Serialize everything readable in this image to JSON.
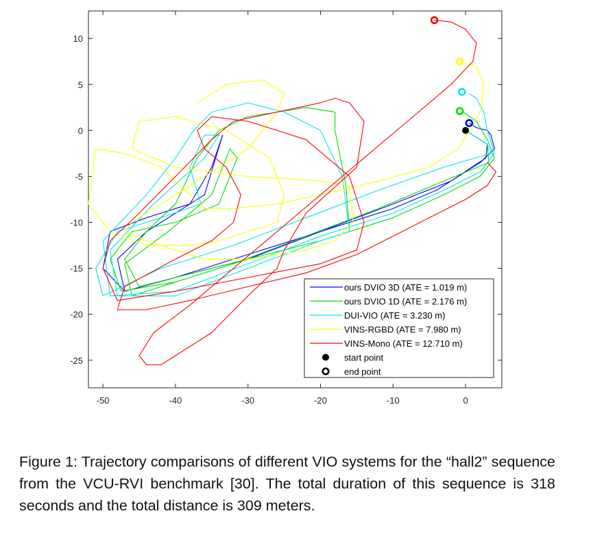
{
  "chart_data": {
    "type": "line",
    "title": "",
    "xlabel": "",
    "ylabel": "",
    "xlim": [
      -52,
      5
    ],
    "ylim": [
      -28,
      13
    ],
    "grid": false,
    "legend_position": "bottom-right",
    "x_ticks": [
      -50,
      -40,
      -30,
      -20,
      -10,
      0
    ],
    "y_ticks": [
      10,
      5,
      0,
      -5,
      -10,
      -15,
      -20,
      -25
    ],
    "x_tick_labels": [
      "-50",
      "-40",
      "-30",
      "-20",
      "-10",
      "0"
    ],
    "y_tick_labels": [
      "10",
      "5",
      "0",
      "-5",
      "-10",
      "-15",
      "-20",
      "-25"
    ],
    "series": [
      {
        "name": "ours DVIO 3D (ATE = 1.019 m)",
        "color": "#0000ff",
        "x": [
          0,
          3,
          2.8,
          -2,
          -10,
          -20,
          -30,
          -40,
          -47,
          -50,
          -49,
          -44,
          -38,
          -35,
          -33.5,
          -36,
          -44,
          -48,
          -47,
          -40,
          -30,
          -20,
          -10,
          -4,
          -1,
          2,
          4,
          3.5,
          3,
          1.5,
          0.5
        ],
        "y": [
          0,
          -1.5,
          -3,
          -5.5,
          -8,
          -11,
          -14,
          -16,
          -17.5,
          -15,
          -11,
          -9.5,
          -8,
          -4,
          -0.5,
          -7,
          -11,
          -14,
          -17.5,
          -16,
          -13.5,
          -11,
          -8.5,
          -6.5,
          -5,
          -3.5,
          -2,
          -0.5,
          0,
          0.3,
          0.8
        ]
      },
      {
        "name": "ours DVIO 1D (ATE = 2.176 m)",
        "color": "#00dd00",
        "x": [
          0,
          3,
          3.2,
          -3,
          -12,
          -22,
          -32,
          -40,
          -47.5,
          -49,
          -46,
          -40,
          -34,
          -31.5,
          -32.5,
          -35,
          -41,
          -47,
          -46,
          -40,
          -30,
          -20,
          -16,
          -16.5,
          -18,
          -18,
          -22,
          -30,
          -34,
          -37,
          -40,
          -44,
          -47,
          -45,
          -40,
          -30,
          -20,
          -10,
          -3,
          2,
          4,
          3,
          1.5,
          -0.3
        ],
        "y": [
          0,
          -1.5,
          -3.5,
          -5.5,
          -8.5,
          -11.5,
          -14.5,
          -16.5,
          -17.5,
          -14,
          -11,
          -10,
          -8,
          -3,
          -2,
          -7,
          -11,
          -14.5,
          -18,
          -16.5,
          -14,
          -12,
          -11,
          -6,
          0,
          2,
          2.5,
          1.5,
          0,
          -3,
          -8,
          -11,
          -14,
          -17,
          -16,
          -14,
          -12,
          -9.5,
          -7,
          -5,
          -3,
          -1,
          1,
          2
        ]
      },
      {
        "name": "DUI-VIO (ATE = 3.230 m)",
        "color": "#00e5ee",
        "x": [
          0,
          3,
          3.5,
          -3,
          -12,
          -22,
          -32,
          -42,
          -50,
          -51,
          -48,
          -42,
          -36.5,
          -38,
          -36,
          -34,
          -36,
          -43,
          -49,
          -48,
          -40,
          -30,
          -20,
          -16,
          -17,
          -20,
          -25,
          -30,
          -35,
          -37.5,
          -40,
          -44,
          -50,
          -49,
          -40,
          -30,
          -20,
          -10,
          -3,
          2,
          4,
          3,
          2.5,
          1.5,
          0.5
        ],
        "y": [
          0,
          -1.5,
          -2.5,
          -4,
          -6.5,
          -9.5,
          -12.5,
          -15,
          -18,
          -15,
          -11,
          -9.5,
          -8,
          -4,
          -0.5,
          -0.5,
          -3,
          -8,
          -13,
          -18,
          -18,
          -15,
          -12,
          -11,
          -5,
          0,
          2,
          3,
          2,
          0,
          -3,
          -7,
          -12,
          -18,
          -17.5,
          -14.5,
          -11.5,
          -9,
          -6.5,
          -4.5,
          -2.5,
          0,
          2,
          3.5,
          4
        ]
      },
      {
        "name": "VINS-RGBD (ATE = 7.980 m)",
        "color": "#ffff00",
        "x": [
          -0.8,
          1.5,
          2.5,
          2,
          -1,
          -5,
          -12,
          -20,
          -26,
          -32,
          -36,
          -38,
          -42,
          -47,
          -51,
          -52,
          -49,
          -44,
          -38,
          -34,
          -30,
          -26,
          -25,
          -27,
          -33,
          -40,
          -45,
          -46,
          -40,
          -30,
          -20,
          -16,
          -15.5,
          -18,
          -22,
          -30,
          -36,
          -40,
          -44,
          -47,
          -46,
          -42,
          -36,
          -30,
          -26,
          -25,
          -28,
          -33,
          -37
        ],
        "y": [
          7.5,
          7,
          5,
          2,
          -2,
          -4,
          -5.5,
          -7,
          -8,
          -8.5,
          -8.5,
          -7,
          -4,
          -2.5,
          -2,
          -8,
          -11,
          -12.5,
          -12.5,
          -12,
          -11,
          -10,
          -7,
          -3,
          0,
          1.5,
          1,
          -2,
          -4,
          -5,
          -5.5,
          -6,
          -10,
          -12,
          -13,
          -14,
          -14,
          -13,
          -12,
          -11,
          -10,
          -8,
          -5,
          -2,
          2,
          4,
          5.5,
          5,
          3
        ]
      },
      {
        "name": "VINS-Mono (ATE = 12.710 m)",
        "color": "#ff0000",
        "x": [
          -4.3,
          -2,
          0,
          1.5,
          1,
          -2,
          -8,
          -14,
          -20,
          -26,
          -32,
          -38,
          -43,
          -45,
          -44,
          -42,
          -35,
          -30,
          -26,
          -25,
          -22,
          -15,
          -14,
          -16,
          -18,
          -20,
          -26,
          -32,
          -35,
          -40,
          -45,
          -49,
          -50,
          -48,
          -40,
          -30,
          -20,
          -15,
          -14,
          -16,
          -22,
          -30,
          -35,
          -37,
          -36,
          -33,
          -31,
          -32,
          -35,
          -40,
          -47,
          -48,
          -44,
          -38,
          -30,
          -22,
          -15,
          -10,
          -5,
          0,
          3,
          4.2,
          3
        ],
        "y": [
          12,
          11.8,
          11,
          9.5,
          7.5,
          5,
          1,
          -3,
          -7,
          -11,
          -15,
          -19,
          -22,
          -24.5,
          -25.5,
          -25.5,
          -22,
          -18,
          -15,
          -13,
          -9,
          -4,
          1,
          3,
          3.5,
          3,
          2,
          1,
          -1,
          -5,
          -9,
          -12,
          -15,
          -18.5,
          -17.5,
          -16,
          -14.5,
          -13,
          -10,
          -5,
          -1,
          1,
          1.5,
          0,
          -2,
          -4,
          -7,
          -10,
          -12,
          -14,
          -17,
          -19.5,
          -19.5,
          -18.5,
          -17,
          -15.5,
          -13.5,
          -11.5,
          -9.5,
          -7.5,
          -6,
          -4.5,
          -3.5
        ]
      }
    ],
    "markers": [
      {
        "name": "start point",
        "x": 0,
        "y": 0
      },
      {
        "name": "end point",
        "x": -4.3,
        "y": 12
      }
    ],
    "end_points": [
      {
        "series": 0,
        "x": 0.5,
        "y": 0.8,
        "color": "#0000ff"
      },
      {
        "series": 1,
        "x": -0.8,
        "y": 2.1,
        "color": "#00dd00"
      },
      {
        "series": 2,
        "x": -0.5,
        "y": 4.2,
        "color": "#00e5ee"
      },
      {
        "series": 3,
        "x": -0.8,
        "y": 7.5,
        "color": "#ffff00"
      },
      {
        "series": 4,
        "x": -4.3,
        "y": 12,
        "color": "#ff0000"
      }
    ]
  },
  "caption": "Figure 1: Trajectory comparisons of different VIO systems for the “hall2” sequence from the VCU-RVI benchmark [30]. The total duration of this sequence is 318 seconds and the total distance is 309 meters."
}
